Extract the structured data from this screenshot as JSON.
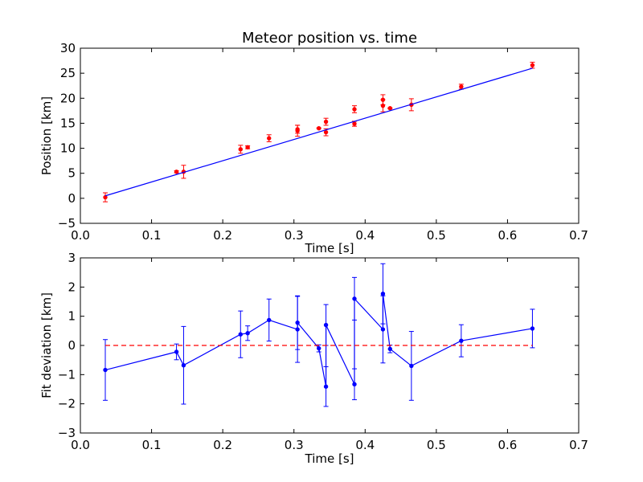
{
  "chart_data": [
    {
      "type": "scatter",
      "title": "Meteor position vs. time",
      "xlabel": "Time [s]",
      "ylabel": "Position [km]",
      "xlim": [
        0.0,
        0.7
      ],
      "ylim": [
        -5,
        30
      ],
      "xticks": [
        "0.0",
        "0.1",
        "0.2",
        "0.3",
        "0.4",
        "0.5",
        "0.6",
        "0.7"
      ],
      "yticks": [
        "−5",
        "0",
        "5",
        "10",
        "15",
        "20",
        "25",
        "30"
      ],
      "grid": false,
      "series": [
        {
          "style": "points-with-errorbars",
          "color": "#ff0000",
          "points": [
            {
              "x": 0.035,
              "y": 0.2,
              "err": 0.9
            },
            {
              "x": 0.135,
              "y": 5.3,
              "err": 0.2
            },
            {
              "x": 0.145,
              "y": 5.3,
              "err": 1.3
            },
            {
              "x": 0.225,
              "y": 9.8,
              "err": 0.8
            },
            {
              "x": 0.235,
              "y": 10.2,
              "err": 0.3
            },
            {
              "x": 0.265,
              "y": 12.0,
              "err": 0.7
            },
            {
              "x": 0.305,
              "y": 13.5,
              "err": 1.1
            },
            {
              "x": 0.305,
              "y": 13.8,
              "err": 0.8
            },
            {
              "x": 0.335,
              "y": 14.0,
              "err": 0.1
            },
            {
              "x": 0.345,
              "y": 13.2,
              "err": 0.7
            },
            {
              "x": 0.345,
              "y": 15.3,
              "err": 0.7
            },
            {
              "x": 0.385,
              "y": 14.9,
              "err": 0.5
            },
            {
              "x": 0.385,
              "y": 17.8,
              "err": 0.7
            },
            {
              "x": 0.425,
              "y": 18.5,
              "err": 1.2
            },
            {
              "x": 0.425,
              "y": 19.7,
              "err": 1.0
            },
            {
              "x": 0.435,
              "y": 18.0,
              "err": 0.1
            },
            {
              "x": 0.465,
              "y": 18.7,
              "err": 1.2
            },
            {
              "x": 0.535,
              "y": 22.3,
              "err": 0.5
            },
            {
              "x": 0.635,
              "y": 26.6,
              "err": 0.6
            }
          ]
        },
        {
          "style": "line",
          "color": "#0000ff",
          "x": [
            0.035,
            0.635
          ],
          "y": [
            0.5,
            26.0
          ]
        }
      ]
    },
    {
      "type": "line",
      "title": "",
      "xlabel": "Time [s]",
      "ylabel": "Fit deviation [km]",
      "xlim": [
        0.0,
        0.7
      ],
      "ylim": [
        -3,
        3
      ],
      "xticks": [
        "0.0",
        "0.1",
        "0.2",
        "0.3",
        "0.4",
        "0.5",
        "0.6",
        "0.7"
      ],
      "yticks": [
        "−3",
        "−2",
        "−1",
        "0",
        "1",
        "2",
        "3"
      ],
      "grid": false,
      "series": [
        {
          "style": "line-with-errorbars",
          "color": "#0000ff",
          "points": [
            {
              "x": 0.035,
              "y": -0.84,
              "err": 1.04
            },
            {
              "x": 0.135,
              "y": -0.22,
              "err": 0.27
            },
            {
              "x": 0.145,
              "y": -0.68,
              "err": 1.33
            },
            {
              "x": 0.225,
              "y": 0.38,
              "err": 0.8
            },
            {
              "x": 0.235,
              "y": 0.42,
              "err": 0.25
            },
            {
              "x": 0.265,
              "y": 0.87,
              "err": 0.72
            },
            {
              "x": 0.305,
              "y": 0.55,
              "err": 1.13
            },
            {
              "x": 0.305,
              "y": 0.78,
              "err": 0.92
            },
            {
              "x": 0.335,
              "y": -0.1,
              "err": 0.12
            },
            {
              "x": 0.345,
              "y": -1.41,
              "err": 0.68
            },
            {
              "x": 0.345,
              "y": 0.7,
              "err": 0.7
            },
            {
              "x": 0.385,
              "y": -1.33,
              "err": 0.53
            },
            {
              "x": 0.385,
              "y": 1.6,
              "err": 0.73
            },
            {
              "x": 0.425,
              "y": 0.55,
              "err": 1.15
            },
            {
              "x": 0.425,
              "y": 1.77,
              "err": 1.03
            },
            {
              "x": 0.435,
              "y": -0.12,
              "err": 0.13
            },
            {
              "x": 0.465,
              "y": -0.7,
              "err": 1.18
            },
            {
              "x": 0.535,
              "y": 0.16,
              "err": 0.55
            },
            {
              "x": 0.635,
              "y": 0.58,
              "err": 0.66
            }
          ]
        },
        {
          "style": "dashed-line",
          "color": "#ff0000",
          "x": [
            0.035,
            0.635
          ],
          "y": [
            0,
            0
          ]
        }
      ]
    }
  ]
}
